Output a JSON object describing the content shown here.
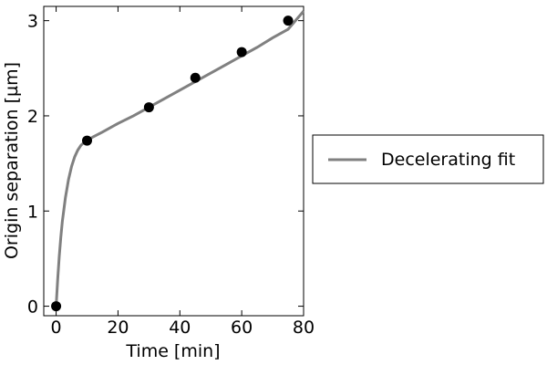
{
  "chart_data": {
    "type": "line",
    "title": "",
    "xlabel": "Time [min]",
    "ylabel": "Origin separation [µm]",
    "xlim": [
      -4,
      80
    ],
    "ylim": [
      -0.1,
      3.15
    ],
    "x_ticks": [
      0,
      20,
      40,
      60,
      80
    ],
    "y_ticks": [
      0,
      1,
      2,
      3
    ],
    "grid": false,
    "legend_placement": "outside-right",
    "points": {
      "x": [
        0,
        10,
        30,
        45,
        60,
        75
      ],
      "y": [
        0.0,
        1.74,
        2.09,
        2.4,
        2.67,
        3.0
      ],
      "color": "#000000"
    },
    "series": [
      {
        "name": "Decelerating fit",
        "color": "#808080",
        "x": [
          0,
          0.5,
          1,
          1.5,
          2,
          3,
          4,
          5,
          6,
          7,
          8,
          9,
          10,
          12,
          15,
          20,
          25,
          30,
          35,
          40,
          45,
          50,
          55,
          60,
          65,
          70,
          75,
          80
        ],
        "y": [
          0.0,
          0.28,
          0.52,
          0.72,
          0.89,
          1.14,
          1.33,
          1.47,
          1.57,
          1.64,
          1.69,
          1.72,
          1.74,
          1.78,
          1.83,
          1.92,
          2.0,
          2.09,
          2.18,
          2.27,
          2.36,
          2.45,
          2.54,
          2.63,
          2.72,
          2.82,
          2.91,
          3.1
        ]
      }
    ]
  }
}
